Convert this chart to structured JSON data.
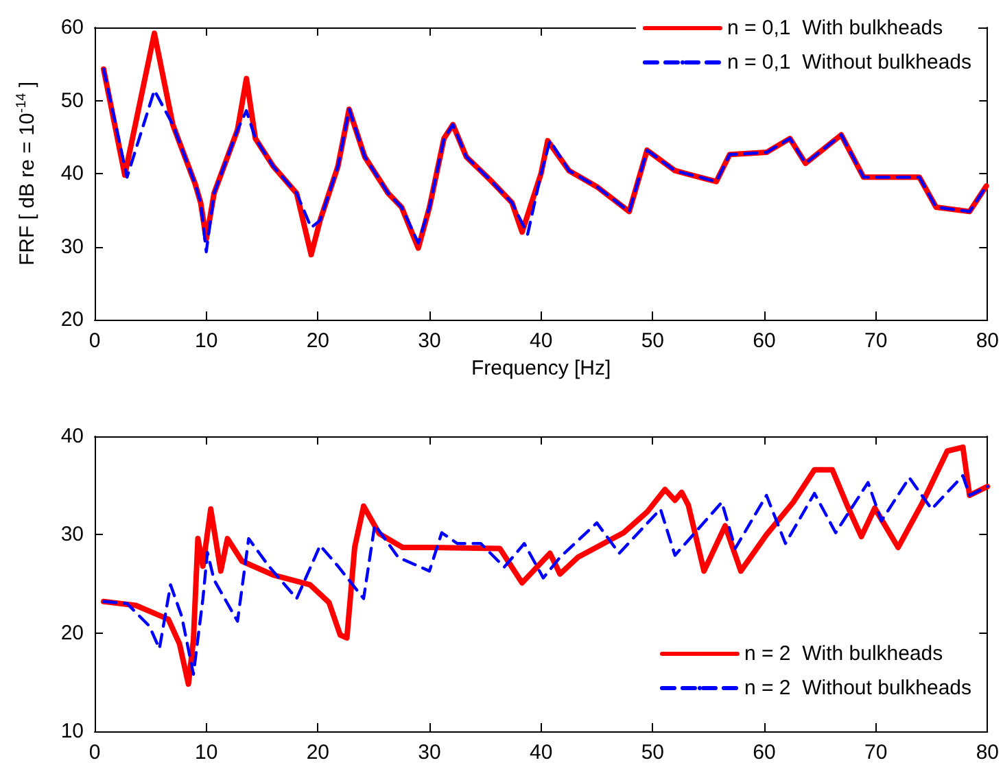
{
  "chart_data": [
    {
      "type": "line",
      "xlabel": "Frequency [Hz]",
      "ylabel": "FRF [ dB re = 10$^{-14}$ ]",
      "xlim": [
        0,
        80
      ],
      "xticks": [
        0,
        10,
        20,
        30,
        40,
        50,
        60,
        70,
        80
      ],
      "ylim": [
        20,
        60
      ],
      "yticks": [
        20,
        30,
        40,
        50,
        60
      ],
      "grid": false,
      "legend": "top right",
      "marker": "none",
      "series": [
        {
          "name": "n = 0,1  With bulkheads",
          "color": "#ff0000",
          "line_style": "solid",
          "x": [
            0.8,
            2.7,
            5.35,
            7,
            9,
            9.5,
            10,
            10.7,
            12.8,
            13.6,
            14.4,
            16,
            18.1,
            19.4,
            20.2,
            21.8,
            22.8,
            24.2,
            26.3,
            27.5,
            29,
            30,
            31.3,
            32.1,
            33.3,
            35.4,
            37.4,
            38.3,
            40,
            40.6,
            42.5,
            45,
            47.9,
            49.5,
            52,
            55.7,
            56.9,
            60.2,
            62.3,
            63.7,
            66.9,
            68.9,
            73.9,
            75.4,
            78.4,
            79.9
          ],
          "values": [
            54.3,
            39.8,
            59.2,
            46.7,
            38.6,
            36,
            31,
            37.3,
            46,
            53,
            44.8,
            41,
            37.3,
            28.9,
            33.6,
            41,
            48.8,
            42.3,
            37.3,
            35.4,
            29.8,
            35.4,
            44.8,
            46.7,
            42.3,
            39.2,
            36,
            32,
            40,
            44.5,
            40.4,
            38.2,
            34.8,
            43.2,
            40.4,
            38.9,
            42.6,
            42.9,
            44.8,
            41.4,
            45.3,
            39.5,
            39.5,
            35.4,
            34.8,
            38.3
          ]
        },
        {
          "name": "n = 0,1  Without bulkheads",
          "color": "#0000ff",
          "line_style": "dashed",
          "x": [
            0.8,
            2.9,
            5.35,
            7,
            9,
            9.5,
            10,
            10.7,
            12.8,
            13.6,
            14.4,
            16,
            18.1,
            19.4,
            20.2,
            21.8,
            22.8,
            24.2,
            26.3,
            27.5,
            29,
            30,
            31.3,
            32.1,
            33.3,
            35.4,
            37.4,
            38.8,
            40,
            40.8,
            42.5,
            45,
            47.9,
            49.5,
            52,
            55.7,
            56.9,
            60.2,
            62.3,
            63.7,
            66.9,
            68.9,
            73.9,
            75.4,
            78.4,
            79.9
          ],
          "values": [
            54.3,
            39.5,
            51.4,
            46.7,
            38.6,
            36,
            29.3,
            37.3,
            46,
            48.6,
            44.8,
            41,
            37.3,
            32.6,
            33.6,
            41,
            48.8,
            42.3,
            37.3,
            35.4,
            30.5,
            35.4,
            44.8,
            46.7,
            42.3,
            39.2,
            36,
            31.7,
            40,
            44.5,
            40.4,
            38.2,
            34.8,
            43.2,
            40.4,
            38.9,
            42.6,
            42.9,
            44.8,
            41.4,
            45.3,
            39.5,
            39.5,
            35.4,
            34.8,
            38.3
          ]
        }
      ]
    },
    {
      "type": "line",
      "xlim": [
        0,
        80
      ],
      "xticks": [
        0,
        10,
        20,
        30,
        40,
        50,
        60,
        70,
        80
      ],
      "ylim": [
        10,
        40
      ],
      "yticks": [
        10,
        20,
        30,
        40
      ],
      "grid": false,
      "legend": "bottom right",
      "marker": "none",
      "series": [
        {
          "name": "n = 2  With bulkheads",
          "color": "#ff0000",
          "line_style": "solid",
          "x": [
            0.8,
            3.7,
            6.6,
            7.6,
            8.4,
            8.85,
            9.25,
            9.7,
            10.4,
            11.3,
            11.9,
            13.2,
            16,
            19.3,
            21,
            22,
            22.6,
            23.3,
            24.1,
            25.5,
            27.6,
            30,
            36.3,
            38.3,
            40.8,
            41.7,
            43.3,
            47.4,
            49.5,
            51.1,
            52,
            52.6,
            53.2,
            54.6,
            56.5,
            57.9,
            60.2,
            62.6,
            64.5,
            66.1,
            67.5,
            68.7,
            69.9,
            72,
            74.2,
            76.4,
            77.8,
            78.4,
            80
          ],
          "values": [
            23.2,
            22.8,
            21.4,
            18.9,
            14.8,
            19.3,
            29.6,
            26.8,
            32.6,
            26.3,
            29.6,
            27.3,
            25.9,
            24.9,
            23.1,
            19.8,
            19.5,
            28.7,
            32.9,
            30.1,
            28.7,
            28.7,
            28.6,
            25.1,
            28.1,
            26,
            27.7,
            30.2,
            32.3,
            34.6,
            33.5,
            34.3,
            33,
            26.3,
            30.9,
            26.3,
            30,
            33.3,
            36.6,
            36.6,
            32.8,
            29.8,
            32.7,
            28.7,
            33.3,
            38.5,
            38.9,
            34,
            34.9
          ]
        },
        {
          "name": "n = 2  Without bulkheads",
          "color": "#0000ff",
          "line_style": "dashed",
          "x": [
            0.8,
            2.9,
            4.9,
            5.8,
            6.8,
            7.8,
            8.85,
            9.7,
            10.1,
            10.7,
            12.8,
            13.8,
            15.6,
            18.1,
            20.2,
            21.8,
            24.1,
            25.1,
            27.2,
            30,
            31.1,
            32.5,
            34.6,
            36.7,
            38.5,
            40.2,
            41.7,
            45,
            47,
            50.7,
            52,
            56.2,
            57.4,
            60.2,
            61.9,
            64.5,
            66.4,
            69.3,
            70.5,
            73,
            75,
            77.8,
            78.4,
            80
          ],
          "values": [
            23.2,
            23,
            20.7,
            18.4,
            24.9,
            21.7,
            15.8,
            23.5,
            28.2,
            25.4,
            21.2,
            29.6,
            26.8,
            23.5,
            28.9,
            26.8,
            23.5,
            31,
            27.7,
            26.3,
            30.2,
            29.1,
            29.1,
            26.7,
            29.1,
            25.6,
            27.7,
            31.2,
            28.1,
            32.6,
            27.9,
            33.3,
            28.6,
            34,
            29.1,
            34.2,
            30.2,
            35.3,
            31.4,
            35.8,
            32.6,
            36,
            34,
            34.9
          ]
        }
      ]
    }
  ]
}
